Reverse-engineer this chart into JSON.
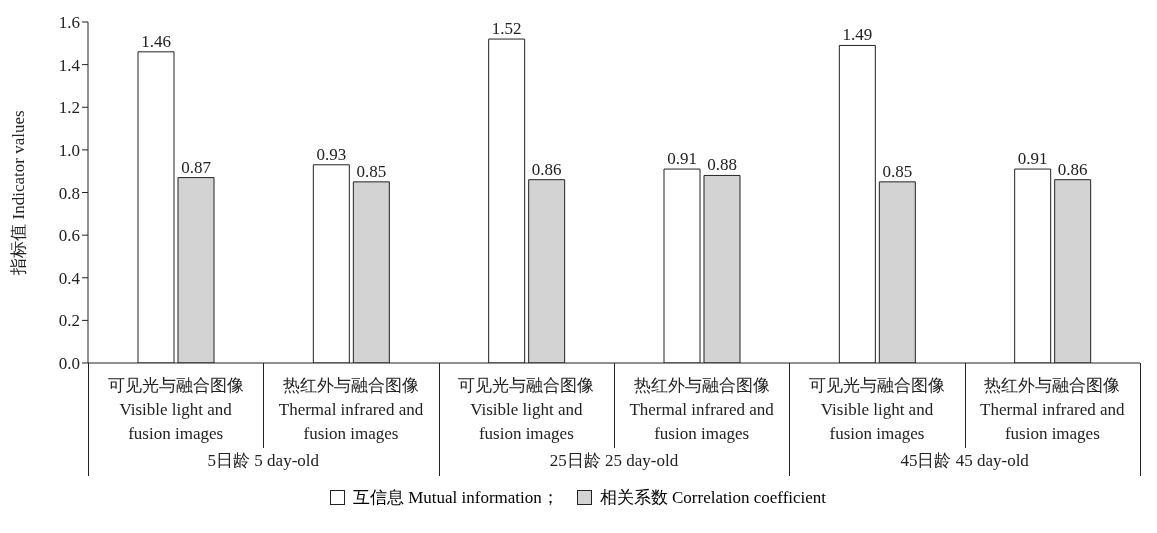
{
  "chart_data": {
    "type": "bar",
    "ylabel": "指标值 Indicator values",
    "categories": [
      "可见光与融合图像\nVisible light and\nfusion images",
      "热红外与融合图像\nThermal infrared and\nfusion images",
      "可见光与融合图像\nVisible light and\nfusion images",
      "热红外与融合图像\nThermal infrared and\nfusion images",
      "可见光与融合图像\nVisible light and\nfusion images",
      "热红外与融合图像\nThermal infrared and\nfusion images"
    ],
    "series": [
      {
        "name": "互信息 Mutual information；",
        "color": "#ffffff",
        "values": [
          1.46,
          0.93,
          1.52,
          0.91,
          1.49,
          0.91
        ]
      },
      {
        "name": "相关系数 Correlation coefficient",
        "color": "#d3d3d3",
        "values": [
          0.87,
          0.85,
          0.86,
          0.88,
          0.85,
          0.86
        ]
      }
    ],
    "annotations": [
      "5日龄 5 day-old",
      "25日龄 25 day-old",
      "45日龄 45 day-old"
    ],
    "ylim": [
      0,
      1.6
    ],
    "yticks": [
      {
        "value": 0,
        "label": "0.0"
      },
      {
        "value": 0.2,
        "label": "0.2"
      },
      {
        "value": 0.4,
        "label": "0.4"
      },
      {
        "value": 0.6,
        "label": "0.6"
      },
      {
        "value": 0.8,
        "label": "0.8"
      },
      {
        "value": 1.0,
        "label": "1.0"
      },
      {
        "value": 1.2,
        "label": "1.2"
      },
      {
        "value": 1.4,
        "label": "1.4"
      },
      {
        "value": 1.6,
        "label": "1.6"
      }
    ],
    "data_labels": true,
    "grid": false,
    "legend": "bottom"
  }
}
